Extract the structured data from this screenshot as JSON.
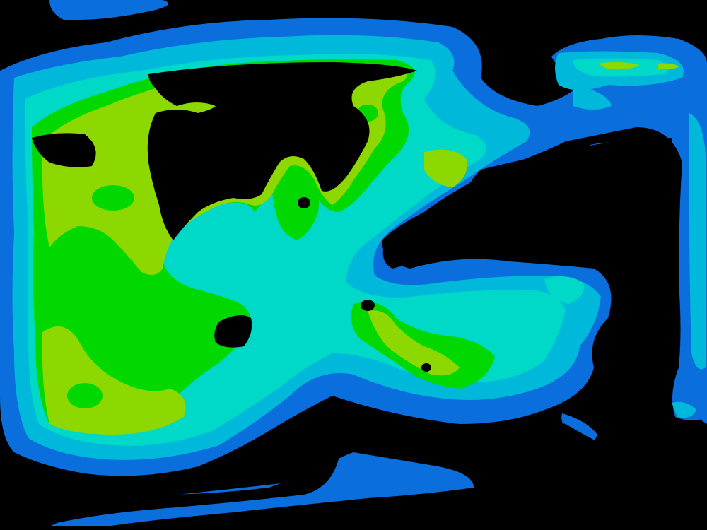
{
  "image": {
    "kind": "filled-contour-heatmap",
    "palette": {
      "background": "#000000",
      "level_1": "#0a6edc",
      "level_2": "#00b8da",
      "level_3": "#00d8c8",
      "level_4": "#00d800",
      "level_5": "#8cd800"
    }
  }
}
